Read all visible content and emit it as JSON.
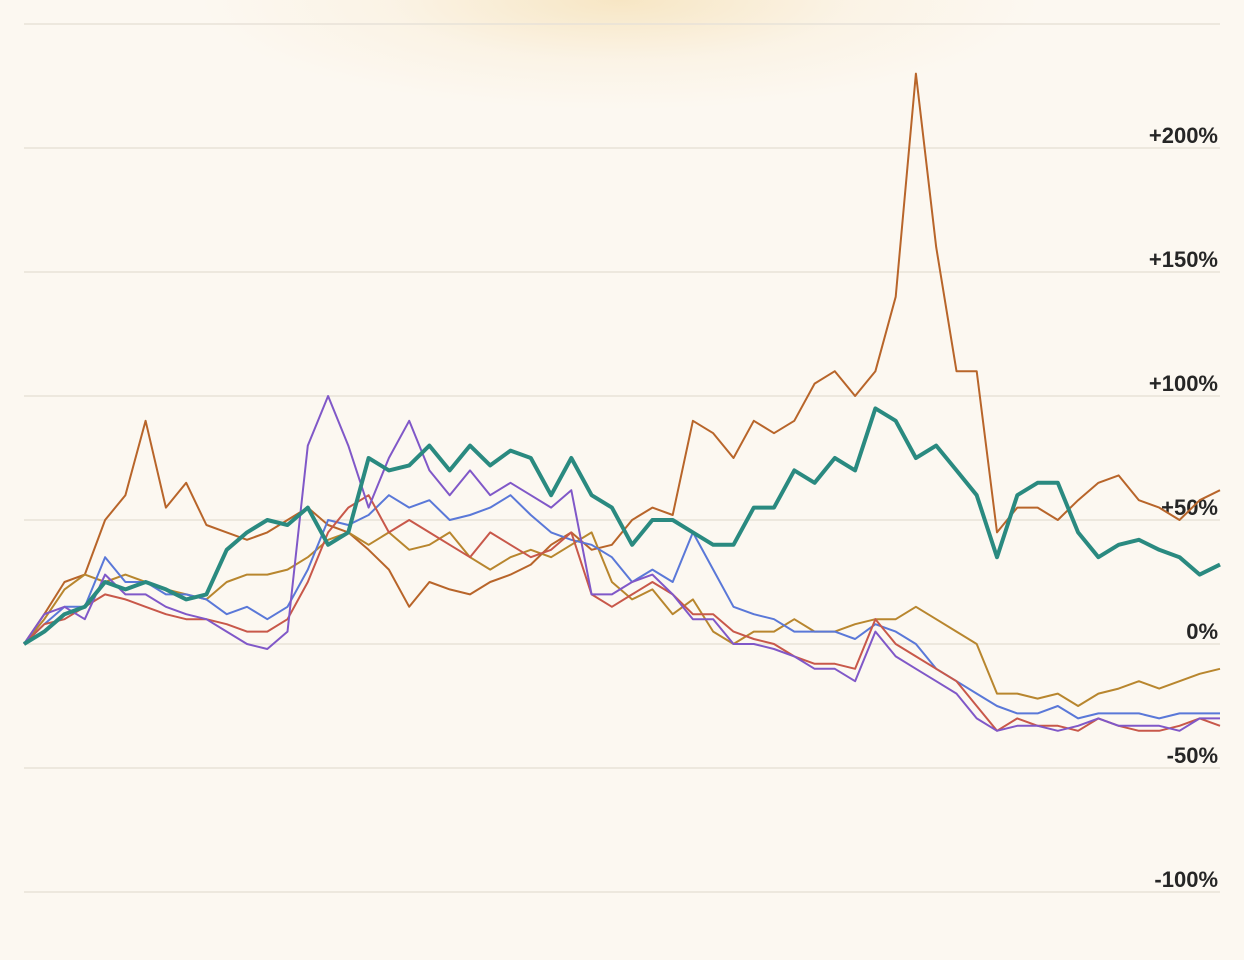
{
  "chart_data": {
    "type": "line",
    "categories": [
      null,
      null,
      null,
      null,
      null,
      null,
      null,
      null,
      null,
      null,
      null,
      null,
      null,
      null,
      null,
      null,
      null,
      null,
      null,
      null,
      null,
      null,
      null,
      null,
      null,
      null,
      null,
      null,
      null,
      null,
      null,
      null,
      null,
      null,
      null,
      null,
      null,
      null,
      null,
      null,
      null,
      null,
      null,
      null,
      null,
      null,
      null,
      null,
      null,
      null,
      null,
      null,
      null,
      null,
      null,
      null,
      null,
      null,
      null,
      null
    ],
    "ylim": [
      -125,
      250
    ],
    "yticks": [
      {
        "value": -100,
        "label": "-100%"
      },
      {
        "value": -50,
        "label": "-50%"
      },
      {
        "value": 0,
        "label": "0%"
      },
      {
        "value": 50,
        "label": "+50%"
      },
      {
        "value": 100,
        "label": "+100%"
      },
      {
        "value": 150,
        "label": "+150%"
      },
      {
        "value": 200,
        "label": "+200%"
      }
    ],
    "grid": true,
    "series": [
      {
        "color": "#b8652a",
        "width": 2,
        "values": [
          0,
          12,
          25,
          28,
          50,
          60,
          90,
          55,
          65,
          48,
          45,
          42,
          45,
          50,
          55,
          48,
          45,
          38,
          30,
          15,
          25,
          22,
          20,
          25,
          28,
          32,
          40,
          45,
          38,
          40,
          50,
          55,
          52,
          90,
          85,
          75,
          90,
          85,
          90,
          105,
          110,
          100,
          110,
          140,
          230,
          160,
          110,
          110,
          45,
          55,
          55,
          50,
          58,
          65,
          68,
          58,
          55,
          50,
          58,
          62
        ]
      },
      {
        "color": "#b8862e",
        "width": 2,
        "values": [
          0,
          10,
          22,
          28,
          25,
          28,
          25,
          22,
          20,
          18,
          25,
          28,
          28,
          30,
          35,
          42,
          45,
          40,
          45,
          38,
          40,
          45,
          35,
          30,
          35,
          38,
          35,
          40,
          45,
          25,
          18,
          22,
          12,
          18,
          5,
          0,
          5,
          5,
          10,
          5,
          5,
          8,
          10,
          10,
          15,
          10,
          5,
          0,
          -20,
          -20,
          -22,
          -20,
          -25,
          -20,
          -18,
          -15,
          -18,
          -15,
          -12,
          -10
        ]
      },
      {
        "color": "#5a78d8",
        "width": 2,
        "values": [
          0,
          8,
          15,
          15,
          35,
          25,
          25,
          20,
          20,
          18,
          12,
          15,
          10,
          15,
          30,
          50,
          48,
          52,
          60,
          55,
          58,
          50,
          52,
          55,
          60,
          52,
          45,
          42,
          40,
          35,
          25,
          30,
          25,
          45,
          30,
          15,
          12,
          10,
          5,
          5,
          5,
          2,
          8,
          5,
          0,
          -10,
          -15,
          -20,
          -25,
          -28,
          -28,
          -25,
          -30,
          -28,
          -28,
          -28,
          -30,
          -28,
          -28,
          -28
        ]
      },
      {
        "color": "#c8584a",
        "width": 2,
        "values": [
          0,
          8,
          10,
          15,
          20,
          18,
          15,
          12,
          10,
          10,
          8,
          5,
          5,
          10,
          25,
          45,
          55,
          60,
          45,
          50,
          45,
          40,
          35,
          45,
          40,
          35,
          38,
          45,
          20,
          15,
          20,
          25,
          20,
          12,
          12,
          5,
          2,
          0,
          -5,
          -8,
          -8,
          -10,
          10,
          0,
          -5,
          -10,
          -15,
          -25,
          -35,
          -30,
          -33,
          -33,
          -35,
          -30,
          -33,
          -35,
          -35,
          -33,
          -30,
          -33
        ]
      },
      {
        "color": "#8058c8",
        "width": 2,
        "values": [
          0,
          12,
          15,
          10,
          28,
          20,
          20,
          15,
          12,
          10,
          5,
          0,
          -2,
          5,
          80,
          100,
          80,
          55,
          75,
          90,
          70,
          60,
          70,
          60,
          65,
          60,
          55,
          62,
          20,
          20,
          25,
          28,
          20,
          10,
          10,
          0,
          0,
          -2,
          -5,
          -10,
          -10,
          -15,
          5,
          -5,
          -10,
          -15,
          -20,
          -30,
          -35,
          -33,
          -33,
          -35,
          -33,
          -30,
          -33,
          -33,
          -33,
          -35,
          -30,
          -30
        ]
      },
      {
        "color": "#2a8a80",
        "width": 4,
        "values": [
          0,
          5,
          12,
          15,
          25,
          22,
          25,
          22,
          18,
          20,
          38,
          45,
          50,
          48,
          55,
          40,
          45,
          75,
          70,
          72,
          80,
          70,
          80,
          72,
          78,
          75,
          60,
          75,
          60,
          55,
          40,
          50,
          50,
          45,
          40,
          40,
          55,
          55,
          70,
          65,
          75,
          70,
          95,
          90,
          75,
          80,
          70,
          60,
          35,
          60,
          65,
          65,
          45,
          35,
          40,
          42,
          38,
          35,
          28,
          32
        ]
      }
    ]
  }
}
